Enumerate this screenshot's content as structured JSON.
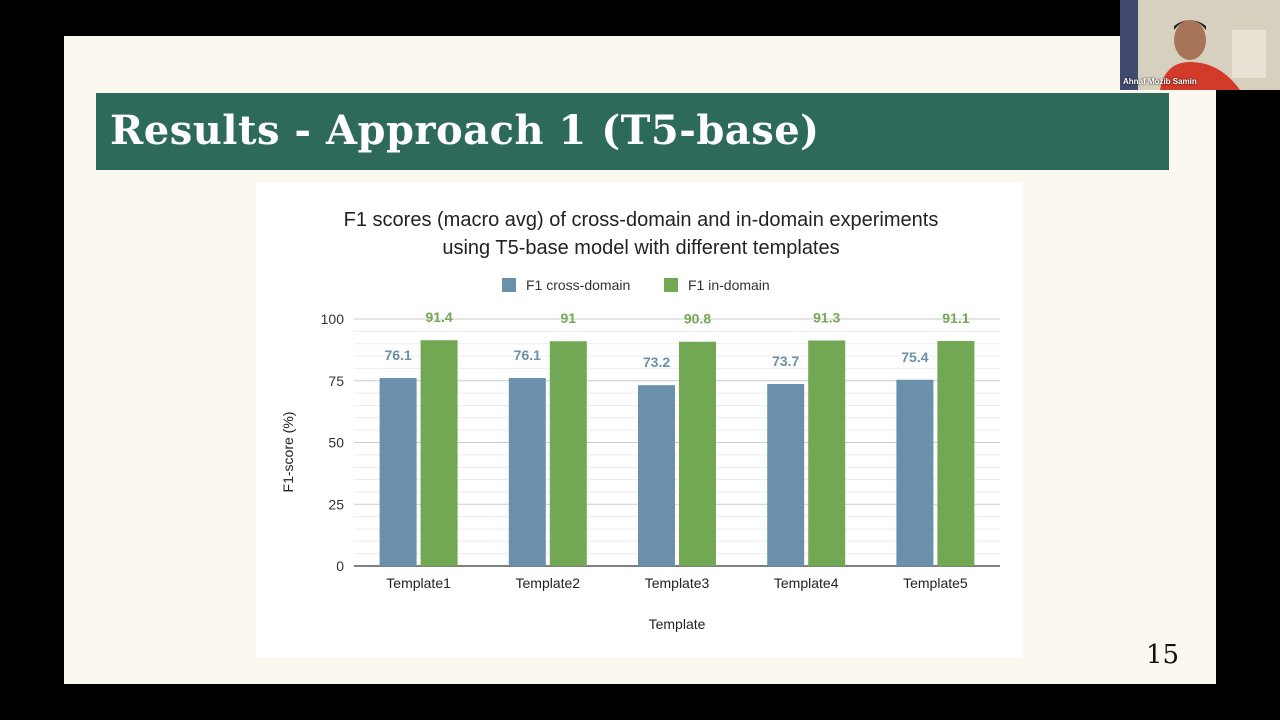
{
  "slide": {
    "title": "Results - Approach 1 (T5-base)",
    "page_number": "15"
  },
  "webcam": {
    "participant_name": "Ahnaf Mozib Samin"
  },
  "chart_data": {
    "type": "bar",
    "title_line1": "F1 scores (macro avg) of cross-domain and in-domain experiments",
    "title_line2": "using T5-base model with different templates",
    "xlabel": "Template",
    "ylabel": "F1-score (%)",
    "ylim": [
      0,
      100
    ],
    "yticks": [
      "0",
      "25",
      "50",
      "75",
      "100"
    ],
    "legend_position": "top",
    "categories": [
      "Template1",
      "Template2",
      "Template3",
      "Template4",
      "Template5"
    ],
    "series": [
      {
        "name": "F1 cross-domain",
        "values": [
          76.1,
          76.1,
          73.2,
          73.7,
          75.4
        ],
        "color": "#6a90ab"
      },
      {
        "name": "F1 in-domain",
        "values": [
          91.4,
          91,
          90.8,
          91.3,
          91.1
        ],
        "color": "#72a854"
      }
    ]
  }
}
